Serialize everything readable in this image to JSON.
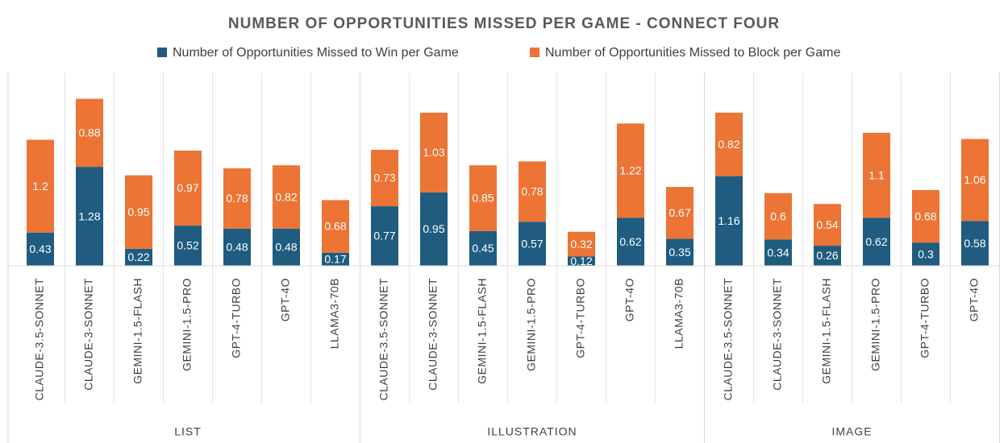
{
  "chart_data": {
    "type": "stacked_bar",
    "title": "NUMBER OF OPPORTUNITIES MISSED PER GAME - CONNECT FOUR",
    "groups": [
      {
        "name": "LIST",
        "categories": [
          "CLAUDE-3.5-SONNET",
          "CLAUDE-3-SONNET",
          "GEMINI-1.5-FLASH",
          "GEMINI-1.5-PRO",
          "GPT-4-TURBO",
          "GPT-4O",
          "LLAMA3-70B"
        ]
      },
      {
        "name": "ILLUSTRATION",
        "categories": [
          "CLAUDE-3.5-SONNET",
          "CLAUDE-3-SONNET",
          "GEMINI-1.5-FLASH",
          "GEMINI-1.5-PRO",
          "GPT-4-TURBO",
          "GPT-4O",
          "LLAMA3-70B"
        ]
      },
      {
        "name": "IMAGE",
        "categories": [
          "CLAUDE-3.5-SONNET",
          "CLAUDE-3-SONNET",
          "GEMINI-1.5-FLASH",
          "GEMINI-1.5-PRO",
          "GPT-4-TURBO",
          "GPT-4O"
        ]
      }
    ],
    "series": [
      {
        "name": "Number of Opportunities Missed to Win per Game",
        "color": "#1f5c80",
        "values": [
          0.43,
          1.28,
          0.22,
          0.52,
          0.48,
          0.48,
          0.17,
          0.77,
          0.95,
          0.45,
          0.57,
          0.12,
          0.62,
          0.35,
          1.16,
          0.34,
          0.26,
          0.62,
          0.3,
          0.58
        ]
      },
      {
        "name": "Number of Opportunities Missed to Block per Game",
        "color": "#ec7434",
        "values": [
          1.2,
          0.88,
          0.95,
          0.97,
          0.78,
          0.82,
          0.68,
          0.73,
          1.03,
          0.85,
          0.78,
          0.32,
          1.22,
          0.67,
          0.82,
          0.6,
          0.54,
          1.1,
          0.68,
          1.06
        ]
      }
    ],
    "ylim": [
      0,
      2.5
    ]
  }
}
